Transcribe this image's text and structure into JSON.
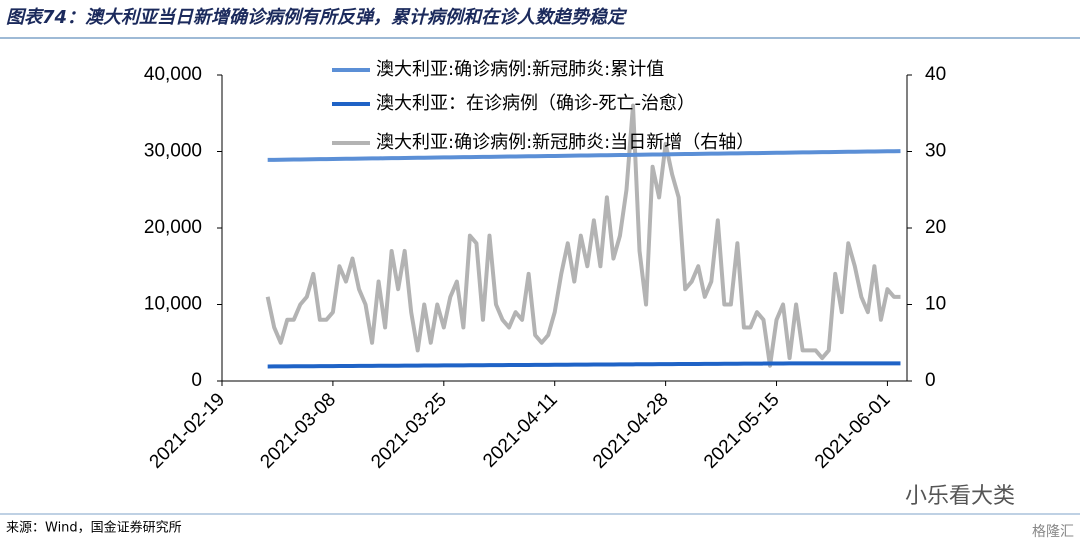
{
  "chart_data": {
    "type": "line",
    "title": "图表74：澳大利亚当日新增确诊病例有所反弹，累计病例和在诊人数趋势稳定",
    "source": "来源：Wind，国金证券研究所",
    "watermark": [
      "小乐看大类",
      "格隆汇"
    ],
    "x": [
      "2021-02-26",
      "2021-02-27",
      "2021-02-28",
      "2021-03-01",
      "2021-03-02",
      "2021-03-03",
      "2021-03-04",
      "2021-03-05",
      "2021-03-06",
      "2021-03-07",
      "2021-03-08",
      "2021-03-09",
      "2021-03-10",
      "2021-03-11",
      "2021-03-12",
      "2021-03-13",
      "2021-03-14",
      "2021-03-15",
      "2021-03-16",
      "2021-03-17",
      "2021-03-18",
      "2021-03-19",
      "2021-03-20",
      "2021-03-21",
      "2021-03-22",
      "2021-03-23",
      "2021-03-24",
      "2021-03-25",
      "2021-03-26",
      "2021-03-27",
      "2021-03-28",
      "2021-03-29",
      "2021-03-30",
      "2021-03-31",
      "2021-04-01",
      "2021-04-02",
      "2021-04-03",
      "2021-04-04",
      "2021-04-05",
      "2021-04-06",
      "2021-04-07",
      "2021-04-08",
      "2021-04-09",
      "2021-04-10",
      "2021-04-11",
      "2021-04-12",
      "2021-04-13",
      "2021-04-14",
      "2021-04-15",
      "2021-04-16",
      "2021-04-17",
      "2021-04-18",
      "2021-04-19",
      "2021-04-20",
      "2021-04-21",
      "2021-04-22",
      "2021-04-23",
      "2021-04-24",
      "2021-04-25",
      "2021-04-26",
      "2021-04-27",
      "2021-04-28",
      "2021-04-29",
      "2021-04-30",
      "2021-05-01",
      "2021-05-02",
      "2021-05-03",
      "2021-05-04",
      "2021-05-05",
      "2021-05-06",
      "2021-05-07",
      "2021-05-08",
      "2021-05-09",
      "2021-05-10",
      "2021-05-11",
      "2021-05-12",
      "2021-05-13",
      "2021-05-14",
      "2021-05-15",
      "2021-05-16",
      "2021-05-17",
      "2021-05-18",
      "2021-05-19",
      "2021-05-20",
      "2021-05-21",
      "2021-05-22",
      "2021-05-23",
      "2021-05-24",
      "2021-05-25",
      "2021-05-26",
      "2021-05-27",
      "2021-05-28",
      "2021-05-29",
      "2021-05-30",
      "2021-05-31",
      "2021-06-01",
      "2021-06-02",
      "2021-06-03"
    ],
    "xlim": [
      "2021-02-19",
      "2021-06-04"
    ],
    "xticks": [
      "2021-02-19",
      "2021-03-08",
      "2021-03-25",
      "2021-04-11",
      "2021-04-28",
      "2021-05-15",
      "2021-06-01"
    ],
    "ylim": [
      0,
      40000
    ],
    "yticks": [
      0,
      {
        "value": 10000,
        "label": "10,000"
      },
      {
        "value": 20000,
        "label": "20,000"
      },
      {
        "value": 30000,
        "label": "30,000"
      },
      {
        "value": 40000,
        "label": "40,000"
      }
    ],
    "y2lim": [
      0,
      40
    ],
    "y2ticks": [
      0,
      10,
      20,
      30,
      40
    ],
    "series": [
      {
        "name": "澳大利亚:确诊病例:新冠肺炎:累计值",
        "color": "#5b8fd6",
        "values": [
          28900,
          28910,
          28920,
          28935,
          28950,
          28960,
          28975,
          28985,
          29000,
          29010,
          29020,
          29035,
          29045,
          29060,
          29070,
          29080,
          29095,
          29105,
          29115,
          29130,
          29140,
          29150,
          29165,
          29175,
          29190,
          29200,
          29210,
          29225,
          29235,
          29245,
          29260,
          29270,
          29280,
          29295,
          29305,
          29315,
          29330,
          29340,
          29350,
          29365,
          29375,
          29385,
          29400,
          29410,
          29420,
          29435,
          29445,
          29455,
          29470,
          29480,
          29490,
          29505,
          29515,
          29530,
          29540,
          29550,
          29565,
          29575,
          29590,
          29600,
          29615,
          29630,
          29640,
          29655,
          29665,
          29680,
          29690,
          29700,
          29715,
          29725,
          29740,
          29750,
          29760,
          29775,
          29785,
          29795,
          29810,
          29820,
          29830,
          29845,
          29855,
          29865,
          29880,
          29890,
          29900,
          29915,
          29925,
          29935,
          29950,
          29960,
          29970,
          29985,
          29995,
          30005,
          30020,
          30030,
          30040,
          30055
        ]
      },
      {
        "name": "澳大利亚：在诊病例（确诊-死亡-治愈）",
        "color": "#1f63c6",
        "values": [
          1900,
          1905,
          1910,
          1915,
          1920,
          1925,
          1930,
          1935,
          1940,
          1945,
          1950,
          1955,
          1960,
          1965,
          1970,
          1975,
          1980,
          1985,
          1990,
          1995,
          2000,
          2005,
          2010,
          2015,
          2020,
          2025,
          2030,
          2035,
          2040,
          2045,
          2050,
          2055,
          2060,
          2065,
          2070,
          2075,
          2080,
          2085,
          2090,
          2095,
          2100,
          2105,
          2110,
          2115,
          2120,
          2125,
          2130,
          2135,
          2140,
          2145,
          2150,
          2155,
          2160,
          2165,
          2170,
          2175,
          2180,
          2185,
          2190,
          2195,
          2200,
          2205,
          2210,
          2215,
          2220,
          2225,
          2230,
          2235,
          2240,
          2245,
          2250,
          2255,
          2260,
          2265,
          2270,
          2275,
          2280,
          2285,
          2290,
          2295,
          2300,
          2300,
          2300,
          2300,
          2300,
          2300,
          2300,
          2300,
          2300,
          2300,
          2300,
          2300,
          2300,
          2300,
          2300,
          2300,
          2300,
          2300
        ]
      },
      {
        "name": "澳大利亚:确诊病例:新冠肺炎:当日新增（右轴）",
        "color": "#b3b3b3",
        "axis": "y2",
        "values": [
          11,
          7,
          5,
          8,
          8,
          10,
          11,
          14,
          8,
          8,
          9,
          15,
          13,
          16,
          12,
          10,
          5,
          13,
          7,
          17,
          12,
          17,
          9,
          4,
          10,
          5,
          10,
          7,
          11,
          13,
          7,
          19,
          18,
          8,
          19,
          10,
          8,
          7,
          9,
          8,
          14,
          6,
          5,
          6,
          9,
          14,
          18,
          13,
          19,
          15,
          21,
          15,
          24,
          16,
          19,
          25,
          36,
          17,
          10,
          28,
          24,
          31,
          27,
          24,
          12,
          13,
          15,
          11,
          13,
          21,
          10,
          10,
          18,
          7,
          7,
          9,
          8,
          2,
          8,
          10,
          3,
          10,
          4,
          4,
          4,
          3,
          4,
          14,
          9,
          18,
          15,
          11,
          9,
          15,
          8,
          12,
          11,
          11
        ]
      }
    ]
  }
}
